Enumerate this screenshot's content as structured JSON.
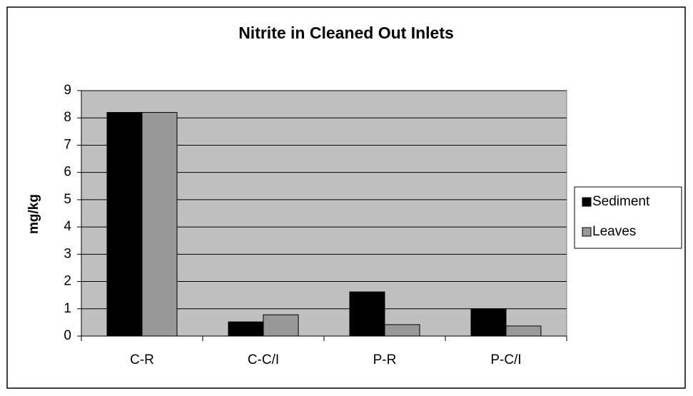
{
  "chart_data": {
    "type": "bar",
    "title": "Nitrite in Cleaned Out Inlets",
    "y_label": "mg/kg",
    "categories": [
      "C-R",
      "C-C/I",
      "P-R",
      "P-C/I"
    ],
    "series": [
      {
        "name": "Sediment",
        "color": "#000000",
        "values": [
          8.2,
          0.52,
          1.62,
          1.0
        ]
      },
      {
        "name": "Leaves",
        "color": "#999999",
        "values": [
          8.2,
          0.78,
          0.42,
          0.37
        ]
      }
    ],
    "ylim": [
      0,
      9
    ],
    "yticks": [
      0,
      1,
      2,
      3,
      4,
      5,
      6,
      7,
      8,
      9
    ],
    "grid": true,
    "legend": "right"
  }
}
